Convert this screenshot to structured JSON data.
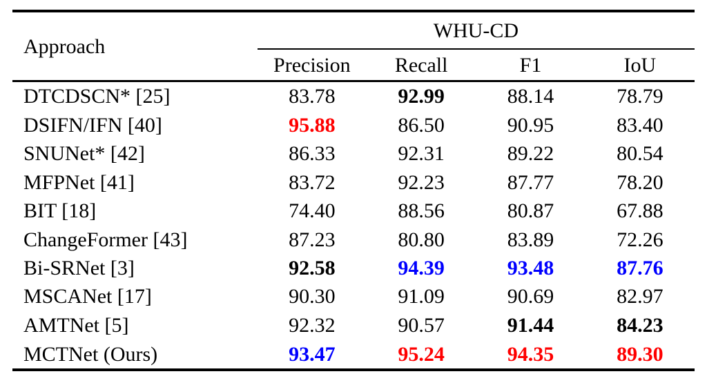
{
  "table": {
    "dataset_header": "WHU-CD",
    "approach_header": "Approach",
    "columns": [
      "Precision",
      "Recall",
      "F1",
      "IoU"
    ],
    "colors": {
      "best": "#ff0000",
      "second_best": "#0000ff",
      "text": "#000000"
    },
    "rows": [
      {
        "approach": "DTCDSCN* [25]",
        "values": [
          {
            "text": "83.78",
            "style": "normal"
          },
          {
            "text": "92.99",
            "style": "bold"
          },
          {
            "text": "88.14",
            "style": "normal"
          },
          {
            "text": "78.79",
            "style": "normal"
          }
        ]
      },
      {
        "approach": "DSIFN/IFN [40]",
        "values": [
          {
            "text": "95.88",
            "style": "bold-red"
          },
          {
            "text": "86.50",
            "style": "normal"
          },
          {
            "text": "90.95",
            "style": "normal"
          },
          {
            "text": "83.40",
            "style": "normal"
          }
        ]
      },
      {
        "approach": "SNUNet* [42]",
        "values": [
          {
            "text": "86.33",
            "style": "normal"
          },
          {
            "text": "92.31",
            "style": "normal"
          },
          {
            "text": "89.22",
            "style": "normal"
          },
          {
            "text": "80.54",
            "style": "normal"
          }
        ]
      },
      {
        "approach": "MFPNet [41]",
        "values": [
          {
            "text": "83.72",
            "style": "normal"
          },
          {
            "text": "92.23",
            "style": "normal"
          },
          {
            "text": "87.77",
            "style": "normal"
          },
          {
            "text": "78.20",
            "style": "normal"
          }
        ]
      },
      {
        "approach": "BIT [18]",
        "values": [
          {
            "text": "74.40",
            "style": "normal"
          },
          {
            "text": "88.56",
            "style": "normal"
          },
          {
            "text": "80.87",
            "style": "normal"
          },
          {
            "text": "67.88",
            "style": "normal"
          }
        ]
      },
      {
        "approach": "ChangeFormer [43]",
        "values": [
          {
            "text": "87.23",
            "style": "normal"
          },
          {
            "text": "80.80",
            "style": "normal"
          },
          {
            "text": "83.89",
            "style": "normal"
          },
          {
            "text": "72.26",
            "style": "normal"
          }
        ]
      },
      {
        "approach": "Bi-SRNet [3]",
        "values": [
          {
            "text": "92.58",
            "style": "bold"
          },
          {
            "text": "94.39",
            "style": "bold-blue"
          },
          {
            "text": "93.48",
            "style": "bold-blue"
          },
          {
            "text": "87.76",
            "style": "bold-blue"
          }
        ]
      },
      {
        "approach": "MSCANet [17]",
        "values": [
          {
            "text": "90.30",
            "style": "normal"
          },
          {
            "text": "91.09",
            "style": "normal"
          },
          {
            "text": "90.69",
            "style": "normal"
          },
          {
            "text": "82.97",
            "style": "normal"
          }
        ]
      },
      {
        "approach": "AMTNet [5]",
        "values": [
          {
            "text": "92.32",
            "style": "normal"
          },
          {
            "text": "90.57",
            "style": "normal"
          },
          {
            "text": "91.44",
            "style": "bold"
          },
          {
            "text": "84.23",
            "style": "bold"
          }
        ]
      },
      {
        "approach": "MCTNet (Ours)",
        "values": [
          {
            "text": "93.47",
            "style": "bold-blue"
          },
          {
            "text": "95.24",
            "style": "bold-red"
          },
          {
            "text": "94.35",
            "style": "bold-red"
          },
          {
            "text": "89.30",
            "style": "bold-red"
          }
        ]
      }
    ]
  }
}
